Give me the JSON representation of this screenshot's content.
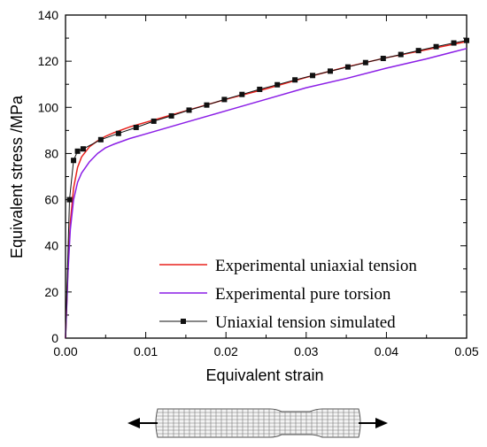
{
  "chart_data": {
    "type": "line",
    "xlabel": "Equivalent  strain",
    "ylabel": "Equivalent  stress /MPa",
    "xlim": [
      0,
      0.05
    ],
    "ylim": [
      0,
      140
    ],
    "xticks": [
      "0.00",
      "0.01",
      "0.02",
      "0.03",
      "0.04",
      "0.05"
    ],
    "yticks": [
      "0",
      "20",
      "40",
      "60",
      "80",
      "100",
      "120",
      "140"
    ],
    "legend": "bottom-right",
    "grid": false,
    "series": [
      {
        "name": "Experimental uniaxial tension",
        "color": "#e8221d",
        "marker": "none",
        "x": [
          0,
          0.0003,
          0.0006,
          0.001,
          0.0015,
          0.002,
          0.003,
          0.004,
          0.005,
          0.006,
          0.008,
          0.01,
          0.015,
          0.02,
          0.025,
          0.03,
          0.035,
          0.04,
          0.045,
          0.05
        ],
        "y": [
          0,
          30,
          50,
          65,
          74,
          78.5,
          83,
          85.5,
          87.5,
          89,
          91.5,
          93.5,
          98.5,
          103.5,
          108,
          113,
          117.5,
          121.5,
          125,
          128.5
        ]
      },
      {
        "name": "Experimental pure torsion",
        "color": "#8b1ee6",
        "marker": "none",
        "x": [
          0,
          0.0003,
          0.0006,
          0.001,
          0.0015,
          0.002,
          0.003,
          0.004,
          0.005,
          0.006,
          0.008,
          0.01,
          0.015,
          0.02,
          0.025,
          0.03,
          0.035,
          0.04,
          0.045,
          0.05
        ],
        "y": [
          0,
          28,
          47,
          60,
          67.5,
          71.5,
          76.5,
          80,
          82.5,
          84,
          86.5,
          88.5,
          93.5,
          98.5,
          103.5,
          108.5,
          112.5,
          117,
          121,
          125.5
        ]
      },
      {
        "name": "Uniaxial tension simulated",
        "color": "#111111",
        "marker": "square",
        "x": [
          0,
          0.0005,
          0.001,
          0.0015,
          0.0022,
          0.0044,
          0.0066,
          0.0088,
          0.011,
          0.0132,
          0.0154,
          0.0176,
          0.0198,
          0.022,
          0.0242,
          0.0264,
          0.0286,
          0.0308,
          0.033,
          0.0352,
          0.0374,
          0.0396,
          0.0418,
          0.044,
          0.0462,
          0.0484,
          0.05
        ],
        "y": [
          0,
          60,
          77,
          81,
          82,
          86,
          88.7,
          91.3,
          94,
          96.3,
          98.8,
          101,
          103.4,
          105.6,
          107.8,
          109.8,
          111.9,
          113.8,
          115.7,
          117.5,
          119.4,
          121.2,
          122.9,
          124.6,
          126.3,
          127.9,
          129
        ]
      }
    ]
  }
}
